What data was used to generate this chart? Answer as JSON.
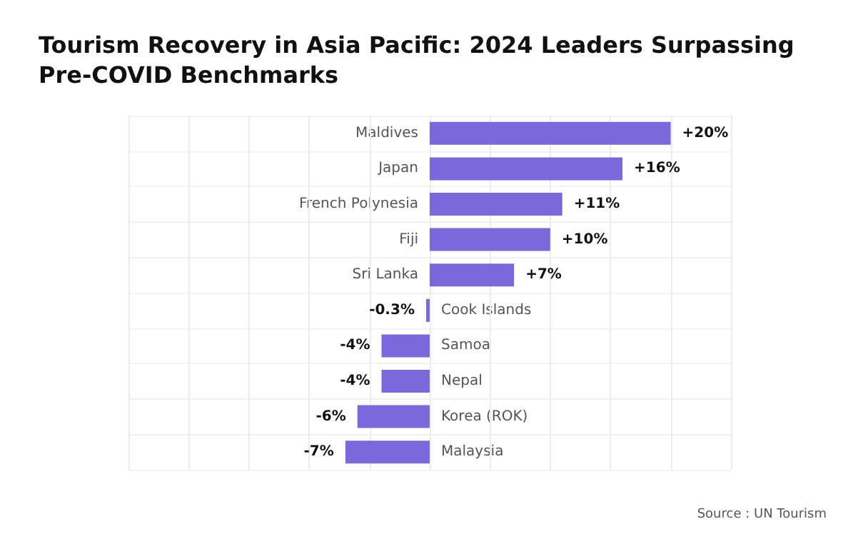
{
  "chart_data": {
    "type": "bar",
    "orientation": "horizontal",
    "title": "Tourism Recovery in Asia Pacific: 2024 Leaders Surpassing Pre-COVID Benchmarks",
    "categories": [
      "Maldives",
      "Japan",
      "French Polynesia",
      "Fiji",
      "Sri Lanka",
      "Cook Islands",
      "Samoa",
      "Nepal",
      "Korea (ROK)",
      "Malaysia"
    ],
    "values": [
      20,
      16,
      11,
      10,
      7,
      -0.3,
      -4,
      -4,
      -6,
      -7
    ],
    "value_labels": [
      "+20%",
      "+16%",
      "+11%",
      "+10%",
      "+7%",
      "-0.3%",
      "-4%",
      "-4%",
      "-6%",
      "-7%"
    ],
    "color": "#7b68dd",
    "xlim": [
      -25,
      25
    ],
    "xticks": [
      {
        "value": -25,
        "label": null
      },
      {
        "value": -20,
        "label": null
      },
      {
        "value": -15,
        "label": null
      },
      {
        "value": -10,
        "label": null
      },
      {
        "value": -5,
        "label": null
      },
      {
        "value": 0,
        "label": null
      },
      {
        "value": 5,
        "label": null
      },
      {
        "value": 10,
        "label": null
      },
      {
        "value": 15,
        "label": null
      },
      {
        "value": 20,
        "label": null
      },
      {
        "value": 25,
        "label": null
      }
    ],
    "grid": true,
    "annotations": [
      "Source : UN Tourism"
    ]
  }
}
